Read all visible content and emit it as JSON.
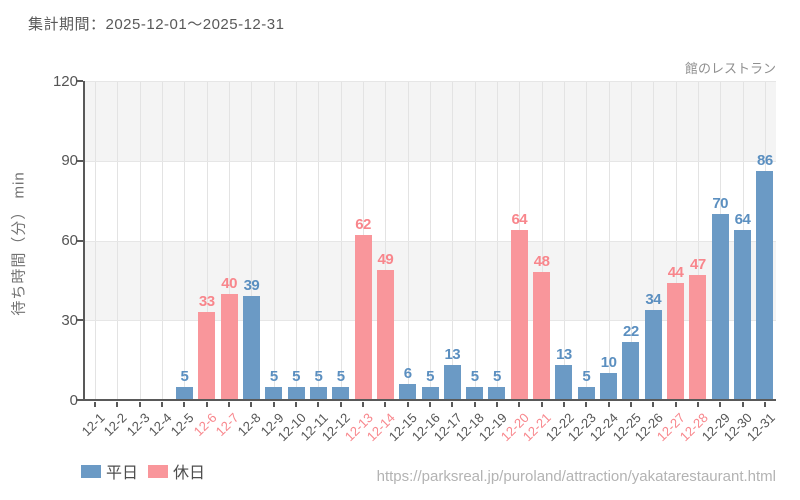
{
  "header": {
    "title": "集計期間：2025-12-01～2025-12-31"
  },
  "chart_name_label": "館のレストラン",
  "footer": {
    "url": "https://parksreal.jp/puroland/attraction/yakatarestaurant.html"
  },
  "legend": {
    "items": [
      {
        "key": "weekday",
        "label": "平日",
        "color": "#6b9ac5"
      },
      {
        "key": "holiday",
        "label": "休日",
        "color": "#f9969b"
      }
    ]
  },
  "colors": {
    "weekday_bar": "#6b9ac5",
    "holiday_bar": "#f9969b",
    "weekday_label": "#5b8fc0",
    "holiday_label": "#f8868c",
    "weekday_tick": "#555555",
    "holiday_tick": "#f8868c",
    "band_gray": "#f4f4f4",
    "axis": "#595959"
  },
  "chart_data": {
    "type": "bar",
    "title": "館のレストラン",
    "xlabel": "",
    "ylabel": "待ち時間（分） min",
    "ylim": [
      0,
      120
    ],
    "yticks": [
      0,
      30,
      60,
      90,
      120
    ],
    "grid": true,
    "legend_position": "bottom-left",
    "categories": [
      "12-1",
      "12-2",
      "12-3",
      "12-4",
      "12-5",
      "12-6",
      "12-7",
      "12-8",
      "12-9",
      "12-10",
      "12-11",
      "12-12",
      "12-13",
      "12-14",
      "12-15",
      "12-16",
      "12-17",
      "12-18",
      "12-19",
      "12-20",
      "12-21",
      "12-22",
      "12-23",
      "12-24",
      "12-25",
      "12-26",
      "12-27",
      "12-28",
      "12-29",
      "12-30",
      "12-31"
    ],
    "values": [
      0,
      0,
      0,
      0,
      5,
      33,
      40,
      39,
      5,
      5,
      5,
      5,
      62,
      49,
      6,
      5,
      13,
      5,
      5,
      64,
      48,
      13,
      5,
      10,
      22,
      34,
      44,
      47,
      70,
      64,
      86
    ],
    "day_type": [
      "weekday",
      "weekday",
      "weekday",
      "weekday",
      "weekday",
      "holiday",
      "holiday",
      "weekday",
      "weekday",
      "weekday",
      "weekday",
      "weekday",
      "holiday",
      "holiday",
      "weekday",
      "weekday",
      "weekday",
      "weekday",
      "weekday",
      "holiday",
      "holiday",
      "weekday",
      "weekday",
      "weekday",
      "weekday",
      "weekday",
      "holiday",
      "holiday",
      "weekday",
      "weekday",
      "weekday"
    ],
    "series_note": "weekday=平日(blue), holiday=休日(pink); zero values render no bar and no label"
  }
}
